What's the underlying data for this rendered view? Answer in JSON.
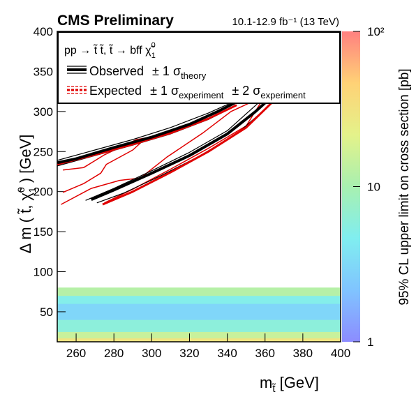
{
  "chart_data": {
    "type": "contour",
    "title": "CMS Preliminary",
    "lumi": "10.1-12.9 fb⁻¹ (13 TeV)",
    "x_label": {
      "main": "m",
      "sub": "t̃",
      "unit": " [GeV]"
    },
    "y_label": {
      "main": "Δ m ( t̃, χ̃",
      "sup": "0",
      "sub": "1",
      "unit": " ) [GeV]"
    },
    "z_label": "95% CL upper limit on cross section [pb]",
    "xlim": [
      250,
      400
    ],
    "xticks": [
      260,
      280,
      300,
      320,
      340,
      360,
      380,
      400
    ],
    "ylim": [
      12.5,
      400
    ],
    "yticks": [
      50,
      100,
      150,
      200,
      250,
      300,
      350,
      400
    ],
    "zlim": [
      1,
      100
    ],
    "zticks": [
      1,
      10,
      {
        "value": 100,
        "label": "10²"
      }
    ],
    "zlog": true,
    "colormap": [
      "#8c8cff",
      "#80c4ff",
      "#80eef0",
      "#a8f0b0",
      "#e4f28a",
      "#ffd276",
      "#ff8080"
    ],
    "heatmap": {
      "ybins": [
        12.5,
        17,
        25,
        40,
        60,
        70,
        80
      ],
      "z": [
        30,
        15,
        6,
        3,
        5,
        12
      ]
    },
    "legend_header": {
      "main": "pp → t̃ t̃, t̃ → bff χ̃",
      "sup": "0",
      "sub": "1"
    },
    "legend": [
      {
        "label": "Observed",
        "bands": [
          {
            "text": "± 1 σ",
            "sub": "theory"
          }
        ]
      },
      {
        "label": "Expected",
        "bands": [
          {
            "text": "± 1 σ",
            "sub": "experiment"
          },
          {
            "text": "± 2 σ",
            "sub": "experiment"
          }
        ]
      }
    ],
    "series": [
      {
        "color": "#e00000",
        "width": 1.5,
        "x": [
          252,
          268,
          283,
          294,
          308,
          327,
          342,
          353,
          null,
          253,
          264,
          273,
          276,
          290,
          297,
          292,
          275,
          264,
          253,
          null,
          275,
          290,
          310,
          330,
          350,
          358
        ],
        "y": [
          184,
          204,
          214,
          217,
          243,
          273,
          300,
          312,
          null,
          199,
          210,
          223,
          234,
          252,
          267,
          265,
          246,
          230,
          227,
          null,
          186,
          203,
          228,
          254,
          282,
          312
        ]
      },
      {
        "color": "#000000",
        "width": 1.2,
        "x": [
          250,
          270,
          290,
          310,
          330,
          345,
          null,
          250,
          270,
          290,
          310,
          330,
          340,
          null,
          265,
          280,
          300,
          320,
          340,
          358,
          null,
          271,
          285,
          305,
          325,
          345,
          365
        ],
        "y": [
          239,
          252,
          265,
          280,
          298,
          314,
          null,
          232,
          245,
          258,
          272,
          290,
          302,
          null,
          189,
          204,
          226,
          249,
          276,
          314,
          null,
          186,
          198,
          220,
          244,
          272,
          313
        ]
      },
      {
        "color": "#e00000",
        "width": 3,
        "x": [
          250,
          270,
          290,
          310,
          330,
          345,
          null,
          274,
          290,
          310,
          330,
          350,
          364
        ],
        "y": [
          234,
          246,
          259,
          273,
          291,
          308,
          null,
          184,
          200,
          224,
          250,
          280,
          312
        ]
      },
      {
        "color": "#000000",
        "width": 4,
        "x": [
          250,
          260,
          280,
          300,
          320,
          335,
          345,
          null,
          268,
          280,
          300,
          320,
          340,
          355,
          362
        ],
        "y": [
          236,
          241,
          255,
          268,
          284,
          300,
          312,
          null,
          190,
          202,
          223,
          245,
          272,
          300,
          315
        ]
      }
    ]
  }
}
